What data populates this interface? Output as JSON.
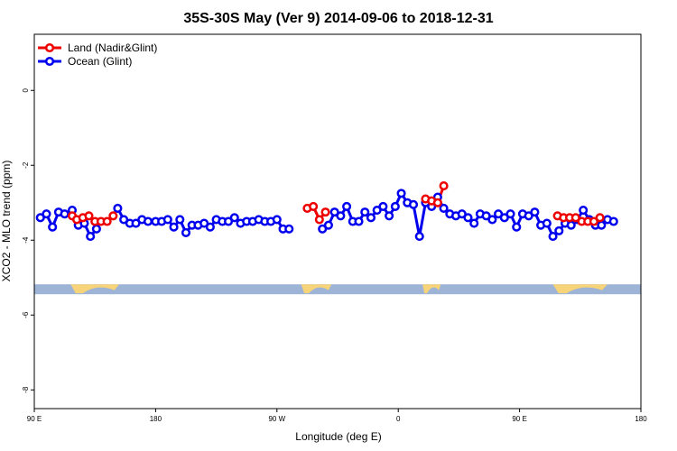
{
  "chart_data": {
    "type": "line",
    "title": "35S-30S May (Ver 9)   2014-09-06 to 2018-12-31",
    "xlabel": "Longitude (deg E)",
    "ylabel": "XCO2 - MLO trend (ppm)",
    "xlim": [
      0,
      400
    ],
    "ylim": [
      -8.5,
      1.5
    ],
    "x_ticks": [
      {
        "value": 0,
        "label": "90 E"
      },
      {
        "value": 80,
        "label": "180"
      },
      {
        "value": 160,
        "label": "90 W"
      },
      {
        "value": 240,
        "label": "0"
      },
      {
        "value": 320,
        "label": "90 E"
      },
      {
        "value": 400,
        "label": "180"
      }
    ],
    "y_ticks": [
      {
        "value": 0,
        "label": "0"
      },
      {
        "value": -2,
        "label": "-2"
      },
      {
        "value": -4,
        "label": "-4"
      },
      {
        "value": -6,
        "label": "-6"
      },
      {
        "value": -8,
        "label": "-8"
      }
    ],
    "legend_position": "top-left",
    "series": [
      {
        "name": "Land (Nadir&Glint)",
        "color": "#ee0000",
        "points": [
          [
            25,
            -3.35
          ],
          [
            28,
            -3.45
          ],
          [
            32,
            -3.4
          ],
          [
            36,
            -3.35
          ],
          [
            40,
            -3.5
          ],
          [
            44,
            -3.5
          ],
          [
            48,
            -3.5
          ],
          [
            52,
            -3.35
          ],
          [
            180,
            -3.15
          ],
          [
            184,
            -3.1
          ],
          [
            188,
            -3.45
          ],
          [
            192,
            -3.25
          ],
          [
            258,
            -2.9
          ],
          [
            262,
            -2.95
          ],
          [
            266,
            -3.0
          ],
          [
            270,
            -2.55
          ],
          [
            345,
            -3.35
          ],
          [
            349,
            -3.4
          ],
          [
            353,
            -3.4
          ],
          [
            357,
            -3.4
          ],
          [
            361,
            -3.5
          ],
          [
            365,
            -3.5
          ],
          [
            369,
            -3.5
          ],
          [
            373,
            -3.4
          ]
        ]
      },
      {
        "name": "Ocean (Glint)",
        "color": "#0000ee",
        "points": [
          [
            4,
            -3.4
          ],
          [
            8,
            -3.3
          ],
          [
            12,
            -3.65
          ],
          [
            16,
            -3.25
          ],
          [
            20,
            -3.3
          ],
          [
            25,
            -3.2
          ],
          [
            29,
            -3.6
          ],
          [
            33,
            -3.55
          ],
          [
            37,
            -3.9
          ],
          [
            41,
            -3.7
          ],
          [
            55,
            -3.15
          ],
          [
            59,
            -3.45
          ],
          [
            63,
            -3.55
          ],
          [
            67,
            -3.55
          ],
          [
            71,
            -3.45
          ],
          [
            75,
            -3.5
          ],
          [
            80,
            -3.5
          ],
          [
            84,
            -3.5
          ],
          [
            88,
            -3.45
          ],
          [
            92,
            -3.65
          ],
          [
            96,
            -3.45
          ],
          [
            100,
            -3.8
          ],
          [
            104,
            -3.6
          ],
          [
            108,
            -3.6
          ],
          [
            112,
            -3.55
          ],
          [
            116,
            -3.65
          ],
          [
            120,
            -3.45
          ],
          [
            124,
            -3.5
          ],
          [
            128,
            -3.5
          ],
          [
            132,
            -3.4
          ],
          [
            136,
            -3.55
          ],
          [
            140,
            -3.5
          ],
          [
            144,
            -3.5
          ],
          [
            148,
            -3.45
          ],
          [
            152,
            -3.5
          ],
          [
            156,
            -3.5
          ],
          [
            160,
            -3.45
          ],
          [
            164,
            -3.7
          ],
          [
            168,
            -3.7
          ],
          [
            190,
            -3.7
          ],
          [
            194,
            -3.6
          ],
          [
            198,
            -3.25
          ],
          [
            202,
            -3.35
          ],
          [
            206,
            -3.1
          ],
          [
            210,
            -3.5
          ],
          [
            214,
            -3.5
          ],
          [
            218,
            -3.25
          ],
          [
            222,
            -3.4
          ],
          [
            226,
            -3.2
          ],
          [
            230,
            -3.1
          ],
          [
            234,
            -3.35
          ],
          [
            238,
            -3.1
          ],
          [
            242,
            -2.75
          ],
          [
            246,
            -3.0
          ],
          [
            250,
            -3.05
          ],
          [
            254,
            -3.9
          ],
          [
            258,
            -3.0
          ],
          [
            262,
            -3.1
          ],
          [
            266,
            -2.85
          ],
          [
            270,
            -3.15
          ],
          [
            274,
            -3.3
          ],
          [
            278,
            -3.35
          ],
          [
            282,
            -3.3
          ],
          [
            286,
            -3.4
          ],
          [
            290,
            -3.55
          ],
          [
            294,
            -3.3
          ],
          [
            298,
            -3.35
          ],
          [
            302,
            -3.45
          ],
          [
            306,
            -3.3
          ],
          [
            310,
            -3.4
          ],
          [
            314,
            -3.3
          ],
          [
            318,
            -3.65
          ],
          [
            322,
            -3.3
          ],
          [
            326,
            -3.35
          ],
          [
            330,
            -3.25
          ],
          [
            334,
            -3.6
          ],
          [
            338,
            -3.55
          ],
          [
            342,
            -3.9
          ],
          [
            346,
            -3.75
          ],
          [
            350,
            -3.55
          ],
          [
            354,
            -3.6
          ],
          [
            358,
            -3.45
          ],
          [
            362,
            -3.2
          ],
          [
            366,
            -3.45
          ],
          [
            370,
            -3.6
          ],
          [
            374,
            -3.6
          ],
          [
            378,
            -3.45
          ],
          [
            382,
            -3.5
          ]
        ]
      }
    ],
    "land_mask": {
      "y": -5.3,
      "ocean_color": "#9db4d6",
      "land_color": "#f7d37a",
      "land_segments": [
        [
          24,
          56
        ],
        [
          176,
          196
        ],
        [
          256,
          268
        ],
        [
          342,
          378
        ]
      ]
    }
  }
}
